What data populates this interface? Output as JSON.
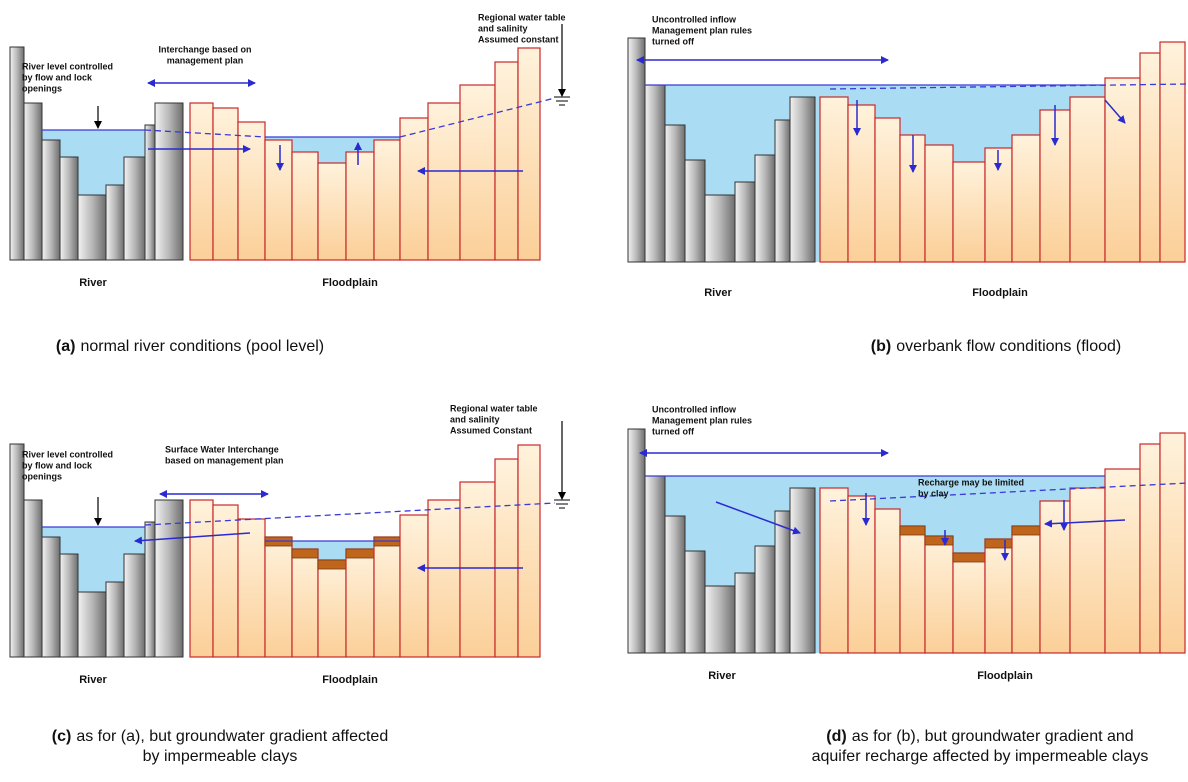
{
  "panels": [
    {
      "id": "(a)",
      "caption": [
        "normal river conditions (pool level)"
      ],
      "river": "River",
      "floodplain": "Floodplain",
      "notes": [
        [
          "River level controlled",
          "by flow and lock",
          " openings"
        ],
        [
          "Interchange based on",
          "management plan"
        ],
        [
          "Regional water table",
          "and salinity",
          "Assumed constant"
        ]
      ]
    },
    {
      "id": "(b)",
      "caption": [
        "overbank flow conditions (flood)"
      ],
      "river": "River",
      "floodplain": "Floodplain",
      "notes": [
        [
          "Uncontrolled inflow",
          "Management plan rules",
          " turned off"
        ]
      ]
    },
    {
      "id": "(c)",
      "caption": [
        "as for (a), but groundwater gradient affected",
        "by impermeable clays"
      ],
      "river": "River",
      "floodplain": "Floodplain",
      "notes": [
        [
          "River level controlled",
          "by flow and lock",
          " openings"
        ],
        [
          "Surface Water Interchange",
          "based on management plan"
        ],
        [
          "Regional water table",
          "and salinity",
          "Assumed Constant"
        ]
      ]
    },
    {
      "id": "(d)",
      "caption": [
        "as for (b), but groundwater gradient and",
        "aquifer recharge affected by impermeable clays"
      ],
      "river": "River",
      "floodplain": "Floodplain",
      "notes": [
        [
          "Uncontrolled inflow",
          "Management plan rules",
          "turned off"
        ],
        [
          "Recharge may be limited",
          "by clay"
        ]
      ]
    }
  ]
}
